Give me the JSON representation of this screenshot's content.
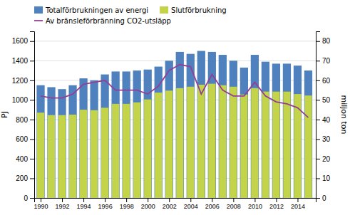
{
  "chart_data": {
    "type": "bar",
    "x": [
      1990,
      1991,
      1992,
      1993,
      1994,
      1995,
      1996,
      1997,
      1998,
      1999,
      2000,
      2001,
      2002,
      2003,
      2004,
      2005,
      2006,
      2007,
      2008,
      2009,
      2010,
      2011,
      2012,
      2013,
      2014,
      2015
    ],
    "xlim": [
      1989.4,
      2015.7
    ],
    "xticks": [
      1990,
      1992,
      1994,
      1996,
      1998,
      2000,
      2002,
      2004,
      2006,
      2008,
      2010,
      2012,
      2014
    ],
    "ylim": [
      0,
      1700
    ],
    "yticks": [
      0,
      200,
      400,
      600,
      800,
      1000,
      1200,
      1400,
      1600
    ],
    "y2lim": [
      0,
      85
    ],
    "y2ticks": [
      0,
      10,
      20,
      30,
      40,
      50,
      60,
      70,
      80
    ],
    "ylabel": "PJ",
    "y2label": "miljon ton",
    "grid": true,
    "legend": "upper left",
    "series": [
      {
        "name": "Totalförbrukningen av energi",
        "color": "#4e81bd",
        "type": "bar",
        "values": [
          1150,
          1130,
          1110,
          1150,
          1220,
          1200,
          1260,
          1290,
          1290,
          1300,
          1310,
          1340,
          1400,
          1490,
          1470,
          1500,
          1490,
          1460,
          1400,
          1330,
          1460,
          1390,
          1370,
          1370,
          1350,
          1300
        ]
      },
      {
        "name": "Slutförbrukning",
        "color": "#c4d44a",
        "type": "bar",
        "values": [
          870,
          845,
          845,
          850,
          900,
          895,
          920,
          960,
          960,
          975,
          1005,
          1075,
          1095,
          1120,
          1135,
          1155,
          1165,
          1150,
          1135,
          1055,
          1120,
          1085,
          1085,
          1085,
          1060,
          1045
        ]
      },
      {
        "name": "Av bränsleförbränning CO2-utsläpp",
        "color": "#943f96",
        "type": "line",
        "axis": "y2",
        "values": [
          52,
          51,
          51,
          53,
          58,
          59,
          60,
          55,
          55,
          55,
          53,
          57,
          65,
          68,
          67,
          53,
          63,
          55,
          52,
          52,
          59,
          52,
          49,
          48,
          46,
          41
        ]
      }
    ]
  }
}
